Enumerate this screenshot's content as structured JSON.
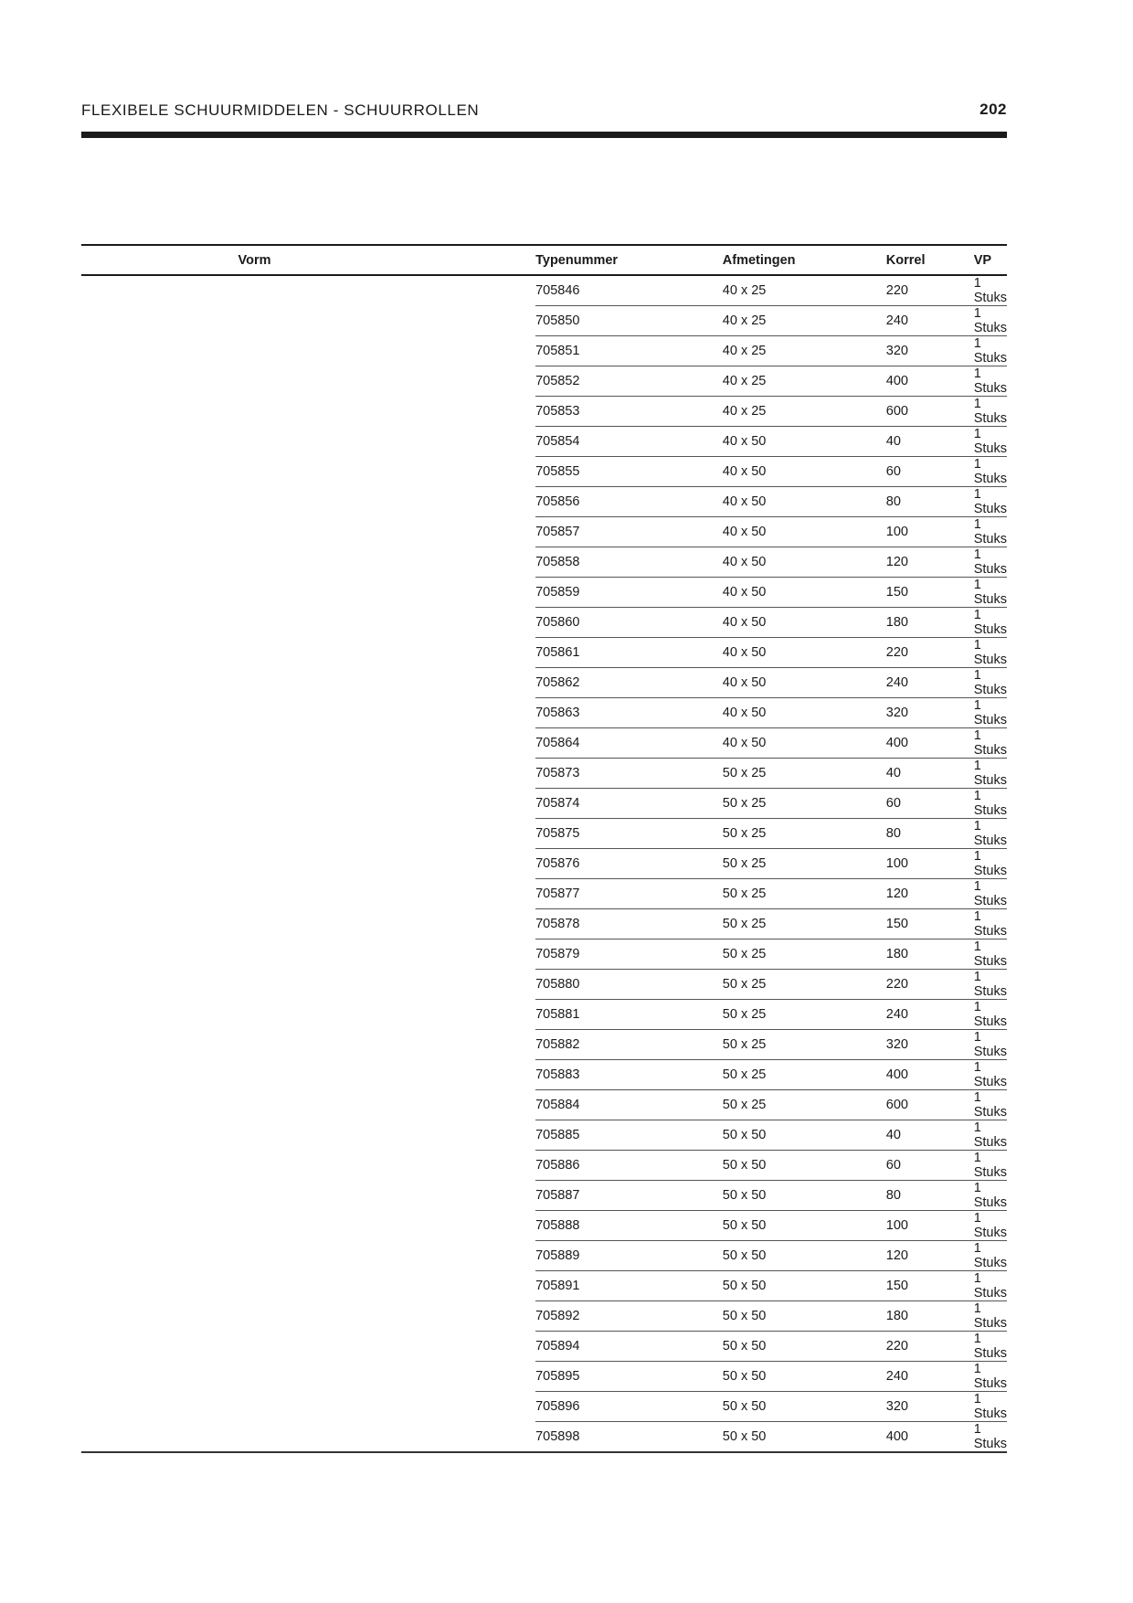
{
  "header": {
    "title": "FLEXIBELE SCHUURMIDDELEN - SCHUURROLLEN",
    "page_number": "202"
  },
  "table": {
    "columns": [
      "Vorm",
      "Typenummer",
      "Afmetingen",
      "Korrel",
      "VP"
    ],
    "rows": [
      {
        "vorm": "",
        "typenummer": "705846",
        "afmetingen": "40 x 25",
        "korrel": "220",
        "vp": "1 Stuks"
      },
      {
        "vorm": "",
        "typenummer": "705850",
        "afmetingen": "40 x 25",
        "korrel": "240",
        "vp": "1 Stuks"
      },
      {
        "vorm": "",
        "typenummer": "705851",
        "afmetingen": "40 x 25",
        "korrel": "320",
        "vp": "1 Stuks"
      },
      {
        "vorm": "",
        "typenummer": "705852",
        "afmetingen": "40 x 25",
        "korrel": "400",
        "vp": "1 Stuks"
      },
      {
        "vorm": "",
        "typenummer": "705853",
        "afmetingen": "40 x 25",
        "korrel": "600",
        "vp": "1 Stuks"
      },
      {
        "vorm": "",
        "typenummer": "705854",
        "afmetingen": "40 x 50",
        "korrel": "40",
        "vp": "1 Stuks"
      },
      {
        "vorm": "",
        "typenummer": "705855",
        "afmetingen": "40 x 50",
        "korrel": "60",
        "vp": "1 Stuks"
      },
      {
        "vorm": "",
        "typenummer": "705856",
        "afmetingen": "40 x 50",
        "korrel": "80",
        "vp": "1 Stuks"
      },
      {
        "vorm": "",
        "typenummer": "705857",
        "afmetingen": "40 x 50",
        "korrel": "100",
        "vp": "1 Stuks"
      },
      {
        "vorm": "",
        "typenummer": "705858",
        "afmetingen": "40 x 50",
        "korrel": "120",
        "vp": "1 Stuks"
      },
      {
        "vorm": "",
        "typenummer": "705859",
        "afmetingen": "40 x 50",
        "korrel": "150",
        "vp": "1 Stuks"
      },
      {
        "vorm": "",
        "typenummer": "705860",
        "afmetingen": "40 x 50",
        "korrel": "180",
        "vp": "1 Stuks"
      },
      {
        "vorm": "",
        "typenummer": "705861",
        "afmetingen": "40 x 50",
        "korrel": "220",
        "vp": "1 Stuks"
      },
      {
        "vorm": "",
        "typenummer": "705862",
        "afmetingen": "40 x 50",
        "korrel": "240",
        "vp": "1 Stuks"
      },
      {
        "vorm": "",
        "typenummer": "705863",
        "afmetingen": "40 x 50",
        "korrel": "320",
        "vp": "1 Stuks"
      },
      {
        "vorm": "",
        "typenummer": "705864",
        "afmetingen": "40 x 50",
        "korrel": "400",
        "vp": "1 Stuks"
      },
      {
        "vorm": "",
        "typenummer": "705873",
        "afmetingen": "50 x 25",
        "korrel": "40",
        "vp": "1 Stuks"
      },
      {
        "vorm": "",
        "typenummer": "705874",
        "afmetingen": "50 x 25",
        "korrel": "60",
        "vp": "1 Stuks"
      },
      {
        "vorm": "",
        "typenummer": "705875",
        "afmetingen": "50 x 25",
        "korrel": "80",
        "vp": "1 Stuks"
      },
      {
        "vorm": "",
        "typenummer": "705876",
        "afmetingen": "50 x 25",
        "korrel": "100",
        "vp": "1 Stuks"
      },
      {
        "vorm": "",
        "typenummer": "705877",
        "afmetingen": "50 x 25",
        "korrel": "120",
        "vp": "1 Stuks"
      },
      {
        "vorm": "",
        "typenummer": "705878",
        "afmetingen": "50 x 25",
        "korrel": "150",
        "vp": "1 Stuks"
      },
      {
        "vorm": "",
        "typenummer": "705879",
        "afmetingen": "50 x 25",
        "korrel": "180",
        "vp": "1 Stuks"
      },
      {
        "vorm": "",
        "typenummer": "705880",
        "afmetingen": "50 x 25",
        "korrel": "220",
        "vp": "1 Stuks"
      },
      {
        "vorm": "",
        "typenummer": "705881",
        "afmetingen": "50 x 25",
        "korrel": "240",
        "vp": "1 Stuks"
      },
      {
        "vorm": "",
        "typenummer": "705882",
        "afmetingen": "50 x 25",
        "korrel": "320",
        "vp": "1 Stuks"
      },
      {
        "vorm": "",
        "typenummer": "705883",
        "afmetingen": "50 x 25",
        "korrel": "400",
        "vp": "1 Stuks"
      },
      {
        "vorm": "",
        "typenummer": "705884",
        "afmetingen": "50 x 25",
        "korrel": "600",
        "vp": "1 Stuks"
      },
      {
        "vorm": "",
        "typenummer": "705885",
        "afmetingen": "50 x 50",
        "korrel": "40",
        "vp": "1 Stuks"
      },
      {
        "vorm": "",
        "typenummer": "705886",
        "afmetingen": "50 x 50",
        "korrel": "60",
        "vp": "1 Stuks"
      },
      {
        "vorm": "",
        "typenummer": "705887",
        "afmetingen": "50 x 50",
        "korrel": "80",
        "vp": "1 Stuks"
      },
      {
        "vorm": "",
        "typenummer": "705888",
        "afmetingen": "50 x 50",
        "korrel": "100",
        "vp": "1 Stuks"
      },
      {
        "vorm": "",
        "typenummer": "705889",
        "afmetingen": "50 x 50",
        "korrel": "120",
        "vp": "1 Stuks"
      },
      {
        "vorm": "",
        "typenummer": "705891",
        "afmetingen": "50 x 50",
        "korrel": "150",
        "vp": "1 Stuks"
      },
      {
        "vorm": "",
        "typenummer": "705892",
        "afmetingen": "50 x 50",
        "korrel": "180",
        "vp": "1 Stuks"
      },
      {
        "vorm": "",
        "typenummer": "705894",
        "afmetingen": "50 x 50",
        "korrel": "220",
        "vp": "1 Stuks"
      },
      {
        "vorm": "",
        "typenummer": "705895",
        "afmetingen": "50 x 50",
        "korrel": "240",
        "vp": "1 Stuks"
      },
      {
        "vorm": "",
        "typenummer": "705896",
        "afmetingen": "50 x 50",
        "korrel": "320",
        "vp": "1 Stuks"
      },
      {
        "vorm": "",
        "typenummer": "705898",
        "afmetingen": "50 x 50",
        "korrel": "400",
        "vp": "1 Stuks"
      }
    ]
  }
}
